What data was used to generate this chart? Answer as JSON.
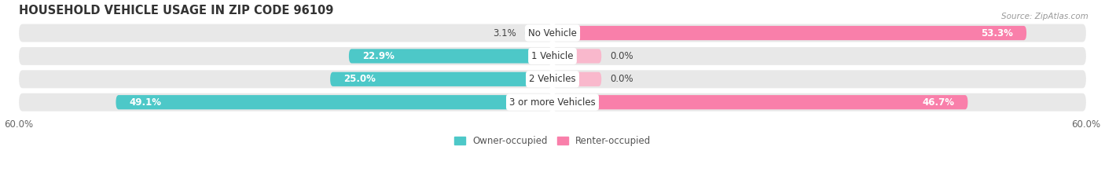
{
  "title": "HOUSEHOLD VEHICLE USAGE IN ZIP CODE 96109",
  "source": "Source: ZipAtlas.com",
  "row_labels": [
    "No Vehicle",
    "1 Vehicle",
    "2 Vehicles",
    "3 or more Vehicles"
  ],
  "owner_values": [
    3.1,
    22.9,
    25.0,
    49.1
  ],
  "renter_values": [
    53.3,
    0.0,
    0.0,
    46.7
  ],
  "renter_small_values": [
    0.0,
    5.5,
    5.5,
    0.0
  ],
  "owner_color": "#4dc8c8",
  "renter_color": "#f97faa",
  "renter_light_color": "#f9b8cc",
  "background_row_color": "#e8e8e8",
  "divider_color": "#ffffff",
  "xlim": 60.0,
  "legend_owner": "Owner-occupied",
  "legend_renter": "Renter-occupied",
  "title_fontsize": 10.5,
  "label_fontsize": 8.5,
  "tick_fontsize": 8.5,
  "source_fontsize": 7.5
}
